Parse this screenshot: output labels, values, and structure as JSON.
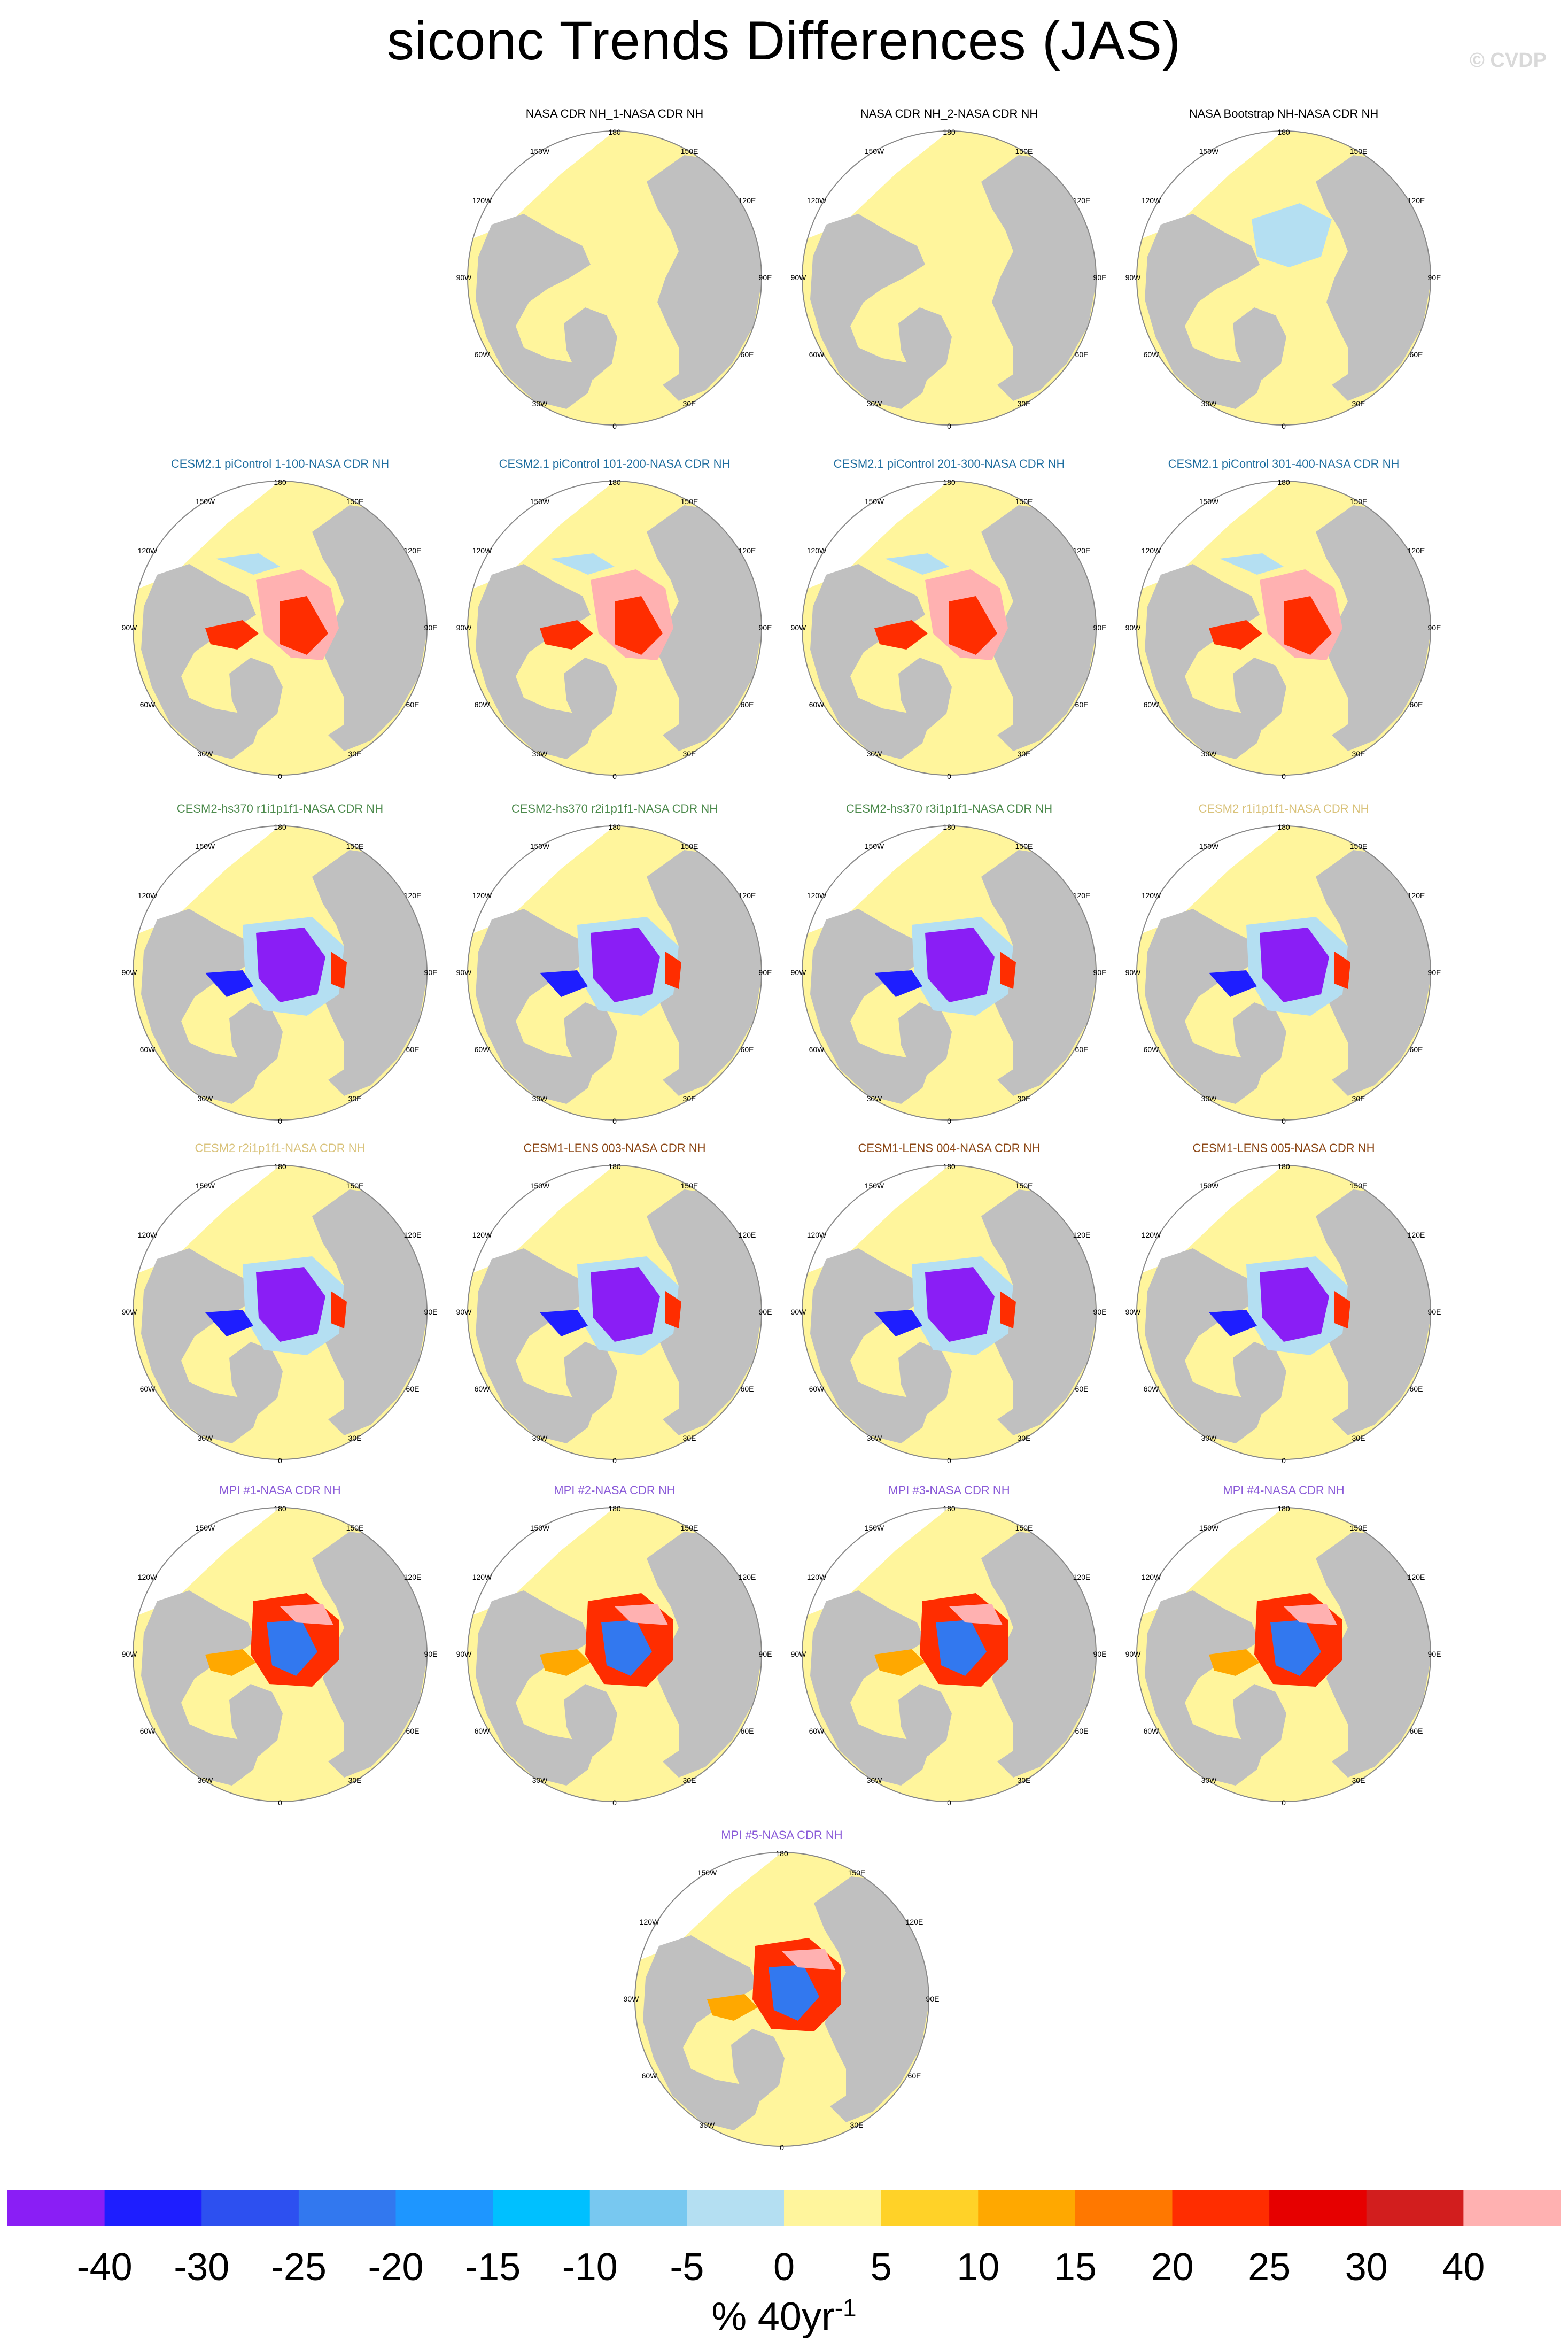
{
  "title": "siconc Trends Differences (JAS)",
  "credit": "© CVDP",
  "colors": {
    "land": "#c0c0c0",
    "ocean_missing": "#ffffff",
    "outline": "#888888",
    "neg_light": "#b4dff2",
    "pos_light": "#fff59c",
    "ice_deep_neg": "#8a1ef5",
    "ice_neg_blue": "#1e1eff",
    "ice_pos_red": "#ff2d00",
    "ice_pos_pink": "#ffb1b1"
  },
  "panels": [
    {
      "label": "NASA CDR NH_1-NASA CDR NH",
      "title_color": "#000000",
      "pattern": "obs"
    },
    {
      "label": "NASA CDR NH_2-NASA CDR NH",
      "title_color": "#000000",
      "pattern": "obs"
    },
    {
      "label": "NASA Bootstrap NH-NASA CDR NH",
      "title_color": "#000000",
      "pattern": "bootstrap"
    },
    {
      "label": "CESM2.1 piControl 1-100-NASA CDR NH",
      "title_color": "#1f6ea0",
      "pattern": "picontrol"
    },
    {
      "label": "CESM2.1 piControl 101-200-NASA CDR NH",
      "title_color": "#1f6ea0",
      "pattern": "picontrol"
    },
    {
      "label": "CESM2.1 piControl 201-300-NASA CDR NH",
      "title_color": "#1f6ea0",
      "pattern": "picontrol"
    },
    {
      "label": "CESM2.1 piControl 301-400-NASA CDR NH",
      "title_color": "#1f6ea0",
      "pattern": "picontrol"
    },
    {
      "label": "CESM2-hs370 r1i1p1f1-NASA CDR NH",
      "title_color": "#4c8a4c",
      "pattern": "strongneg"
    },
    {
      "label": "CESM2-hs370 r2i1p1f1-NASA CDR NH",
      "title_color": "#4c8a4c",
      "pattern": "strongneg"
    },
    {
      "label": "CESM2-hs370 r3i1p1f1-NASA CDR NH",
      "title_color": "#4c8a4c",
      "pattern": "strongneg"
    },
    {
      "label": "CESM2 r1i1p1f1-NASA CDR NH",
      "title_color": "#d9c27a",
      "pattern": "strongneg"
    },
    {
      "label": "CESM2 r2i1p1f1-NASA CDR NH",
      "title_color": "#d9c27a",
      "pattern": "strongneg"
    },
    {
      "label": "CESM1-LENS 003-NASA CDR NH",
      "title_color": "#8b4513",
      "pattern": "strongneg"
    },
    {
      "label": "CESM1-LENS 004-NASA CDR NH",
      "title_color": "#8b4513",
      "pattern": "strongneg"
    },
    {
      "label": "CESM1-LENS 005-NASA CDR NH",
      "title_color": "#8b4513",
      "pattern": "strongneg"
    },
    {
      "label": "MPI #1-NASA CDR NH",
      "title_color": "#8a5ad8",
      "pattern": "mpi"
    },
    {
      "label": "MPI #2-NASA CDR NH",
      "title_color": "#8a5ad8",
      "pattern": "mpi"
    },
    {
      "label": "MPI #3-NASA CDR NH",
      "title_color": "#8a5ad8",
      "pattern": "mpi"
    },
    {
      "label": "MPI #4-NASA CDR NH",
      "title_color": "#8a5ad8",
      "pattern": "mpi"
    },
    {
      "label": "MPI #5-NASA CDR NH",
      "title_color": "#8a5ad8",
      "pattern": "mpi"
    }
  ],
  "map_labels": [
    "180",
    "150W",
    "150E",
    "120W",
    "120E",
    "90W",
    "90E",
    "60W",
    "60E",
    "30W",
    "30E",
    "0"
  ],
  "colorbar": {
    "colors": [
      "#8a1ef5",
      "#1e1eff",
      "#2d50f0",
      "#3278ef",
      "#1e96ff",
      "#00c0ff",
      "#78c8f0",
      "#b4dff2",
      "#fff59c",
      "#ffd228",
      "#ffa800",
      "#ff7800",
      "#ff2d00",
      "#e60000",
      "#d21e1e",
      "#ffb1b1"
    ],
    "ticks": [
      "-40",
      "-30",
      "-25",
      "-20",
      "-15",
      "-10",
      "-5",
      "0",
      "5",
      "10",
      "15",
      "20",
      "25",
      "30",
      "40"
    ]
  },
  "units": "% 40yr",
  "units_exponent": "-1",
  "chart_data": {
    "type": "heatmap",
    "title": "siconc Trends Differences (JAS)",
    "variable": "siconc",
    "season": "JAS",
    "projection": "north polar stereographic",
    "unit_label": "% 40yr-1",
    "color_levels": [
      -40,
      -30,
      -25,
      -20,
      -15,
      -10,
      -5,
      0,
      5,
      10,
      15,
      20,
      25,
      30,
      40
    ],
    "panel_titles": [
      "NASA CDR NH_1-NASA CDR NH",
      "NASA CDR NH_2-NASA CDR NH",
      "NASA Bootstrap NH-NASA CDR NH",
      "CESM2.1 piControl 1-100-NASA CDR NH",
      "CESM2.1 piControl 101-200-NASA CDR NH",
      "CESM2.1 piControl 201-300-NASA CDR NH",
      "CESM2.1 piControl 301-400-NASA CDR NH",
      "CESM2-hs370 r1i1p1f1-NASA CDR NH",
      "CESM2-hs370 r2i1p1f1-NASA CDR NH",
      "CESM2-hs370 r3i1p1f1-NASA CDR NH",
      "CESM2 r1i1p1f1-NASA CDR NH",
      "CESM2 r2i1p1f1-NASA CDR NH",
      "CESM1-LENS 003-NASA CDR NH",
      "CESM1-LENS 004-NASA CDR NH",
      "CESM1-LENS 005-NASA CDR NH",
      "MPI #1-NASA CDR NH",
      "MPI #2-NASA CDR NH",
      "MPI #3-NASA CDR NH",
      "MPI #4-NASA CDR NH",
      "MPI #5-NASA CDR NH"
    ]
  }
}
